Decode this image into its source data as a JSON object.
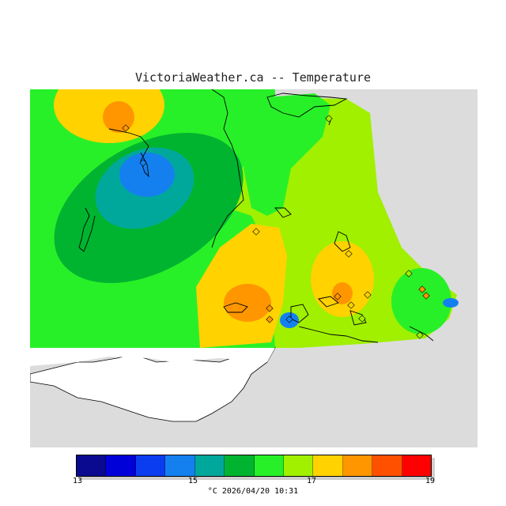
{
  "title": "VictoriaWeather.ca -- Temperature",
  "legend": {
    "ticks": [
      "13",
      "15",
      "17",
      "19"
    ],
    "colors": [
      "#0a0a90",
      "#0000d8",
      "#0a3cf0",
      "#1480f0",
      "#00a89c",
      "#00b430",
      "#28f028",
      "#a0f000",
      "#ffd200",
      "#ff9600",
      "#ff5000",
      "#ff0000"
    ],
    "unit": "°C",
    "date": "2026/04/20",
    "time": "10:31"
  },
  "caption": "°C  2026/04/20 10:31",
  "map": {
    "sea_color": "#dcdcdc",
    "land_color": "#ffffff",
    "stations_count_visible": 20
  }
}
